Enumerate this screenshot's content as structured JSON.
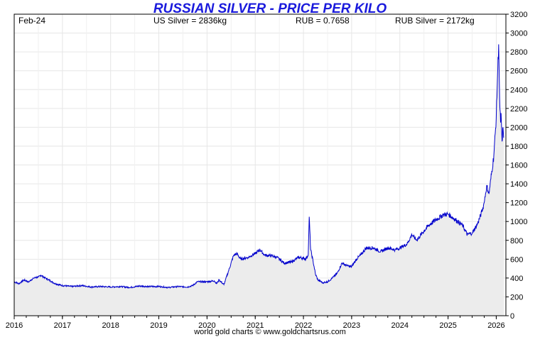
{
  "chart_data": {
    "type": "area",
    "title": "RUSSIAN SILVER - PRICE PER KILO",
    "date_label": "Feb-24",
    "annotations": [
      "US Silver = 2836kg",
      "RUB = 0.7658",
      "RUB Silver = 2172kg"
    ],
    "credit": "world gold charts © www.goldchartsrus.com",
    "x_ticks": [
      "2016",
      "2017",
      "2018",
      "2019",
      "2020",
      "2021",
      "2022",
      "2023",
      "2024",
      "2025",
      "2026"
    ],
    "y_ticks": [
      0,
      200,
      400,
      600,
      800,
      1000,
      1200,
      1400,
      1600,
      1800,
      2000,
      2200,
      2400,
      2600,
      2800,
      3000,
      3200
    ],
    "ylim": [
      0,
      3200
    ],
    "xlim": [
      2016.0,
      2026.2
    ],
    "y_axis_side": "right",
    "grid": true,
    "colors": {
      "title": "#1a1adc",
      "line": "#0000cc",
      "area": "#ececec",
      "grid": "#e6e6e6"
    },
    "series": [
      {
        "x": [
          2016.0,
          2016.1,
          2016.2,
          2016.3,
          2016.4,
          2016.5,
          2016.55,
          2016.65,
          2016.75,
          2016.85,
          2017.0,
          2017.2,
          2017.4,
          2017.6,
          2017.8,
          2018.0,
          2018.2,
          2018.4,
          2018.6,
          2018.8,
          2019.0,
          2019.2,
          2019.4,
          2019.6,
          2019.7,
          2019.8,
          2020.0,
          2020.15,
          2020.2,
          2020.25,
          2020.35,
          2020.45,
          2020.55,
          2020.62,
          2020.7,
          2020.85,
          2021.0,
          2021.1,
          2021.2,
          2021.3,
          2021.45,
          2021.6,
          2021.75,
          2021.9,
          2022.0,
          2022.05,
          2022.1,
          2022.12,
          2022.15,
          2022.2,
          2022.25,
          2022.3,
          2022.4,
          2022.5,
          2022.6,
          2022.7,
          2022.8,
          2022.9,
          2023.0,
          2023.1,
          2023.2,
          2023.3,
          2023.45,
          2023.6,
          2023.75,
          2023.9,
          2024.0,
          2024.15,
          2024.25,
          2024.35,
          2024.5,
          2024.6,
          2024.75,
          2024.9,
          2025.0,
          2025.1,
          2025.2,
          2025.3,
          2025.4,
          2025.5,
          2025.6,
          2025.7,
          2025.75,
          2025.8,
          2025.85,
          2025.9,
          2025.95,
          2026.0,
          2026.03,
          2026.05,
          2026.07,
          2026.09,
          2026.1,
          2026.12,
          2026.14,
          2026.16
        ],
        "values": [
          360,
          340,
          380,
          360,
          400,
          410,
          430,
          400,
          370,
          340,
          320,
          310,
          320,
          305,
          310,
          305,
          310,
          300,
          315,
          310,
          310,
          300,
          310,
          305,
          320,
          360,
          360,
          370,
          340,
          380,
          330,
          480,
          640,
          660,
          600,
          620,
          660,
          700,
          640,
          640,
          620,
          560,
          570,
          620,
          610,
          600,
          650,
          1050,
          700,
          580,
          440,
          380,
          350,
          360,
          400,
          450,
          560,
          530,
          520,
          600,
          650,
          720,
          720,
          680,
          720,
          700,
          720,
          760,
          860,
          800,
          900,
          960,
          1020,
          1070,
          1080,
          1040,
          1000,
          960,
          860,
          880,
          960,
          1100,
          1200,
          1380,
          1300,
          1500,
          1700,
          2100,
          2600,
          2880,
          2300,
          2050,
          2150,
          1850,
          2000,
          1900
        ]
      }
    ]
  }
}
